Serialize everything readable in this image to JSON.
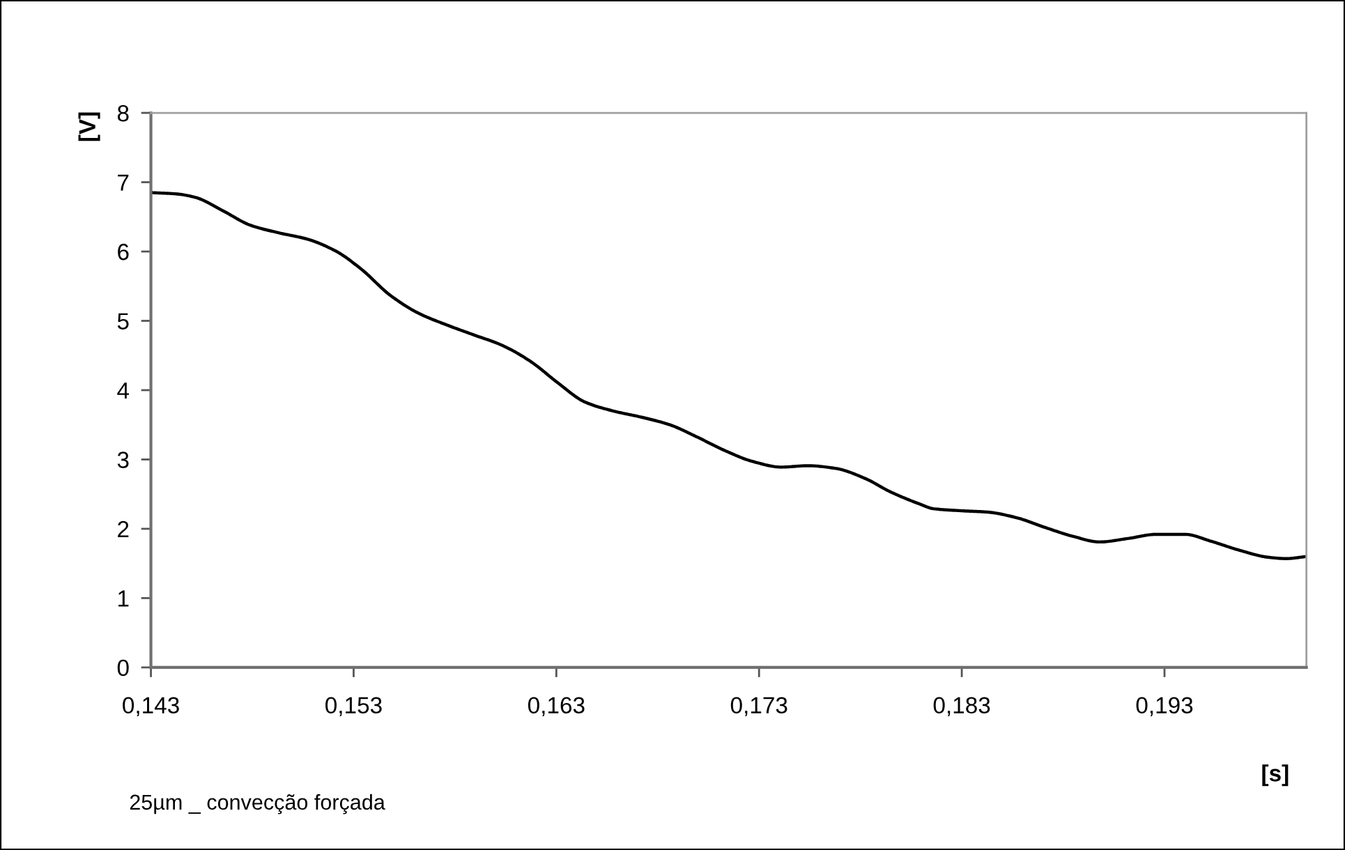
{
  "chart_data": {
    "type": "line",
    "xlabel": "[s]",
    "ylabel": "[V]",
    "annotations": [
      "25µm _ convecção forçada"
    ],
    "x": [
      0.143,
      0.1443,
      0.1452,
      0.1466,
      0.1479,
      0.1493,
      0.1507,
      0.1521,
      0.1534,
      0.1548,
      0.1562,
      0.1576,
      0.1589,
      0.1603,
      0.1617,
      0.1631,
      0.1644,
      0.1658,
      0.1672,
      0.1686,
      0.1699,
      0.1713,
      0.1727,
      0.1741,
      0.1754,
      0.1768,
      0.1782,
      0.1795,
      0.1809,
      0.1816,
      0.183,
      0.1843,
      0.1857,
      0.1871,
      0.1885,
      0.1898,
      0.1912,
      0.1926,
      0.194,
      0.1953,
      0.1967,
      0.1981,
      0.199,
      0.2
    ],
    "values": [
      6.85,
      6.83,
      6.78,
      6.58,
      6.38,
      6.27,
      6.18,
      6.01,
      5.74,
      5.37,
      5.11,
      4.94,
      4.8,
      4.65,
      4.42,
      4.1,
      3.83,
      3.7,
      3.61,
      3.5,
      3.33,
      3.13,
      2.97,
      2.89,
      2.91,
      2.87,
      2.73,
      2.53,
      2.36,
      2.29,
      2.26,
      2.24,
      2.16,
      2.02,
      1.89,
      1.81,
      1.86,
      1.92,
      1.92,
      1.82,
      1.69,
      1.59,
      1.57,
      1.6
    ],
    "color": "#000000",
    "line_style": "solid",
    "xlim": [
      0.143,
      0.2
    ],
    "xticks": [
      {
        "value": 0.143,
        "label": "0,143"
      },
      {
        "value": 0.153,
        "label": "0,153"
      },
      {
        "value": 0.163,
        "label": "0,163"
      },
      {
        "value": 0.173,
        "label": "0,173"
      },
      {
        "value": 0.183,
        "label": "0,183"
      },
      {
        "value": 0.193,
        "label": "0,193"
      }
    ],
    "ylim": [
      0,
      8
    ],
    "yticks": [
      0,
      1,
      2,
      3,
      4,
      5,
      6,
      7,
      8
    ]
  }
}
